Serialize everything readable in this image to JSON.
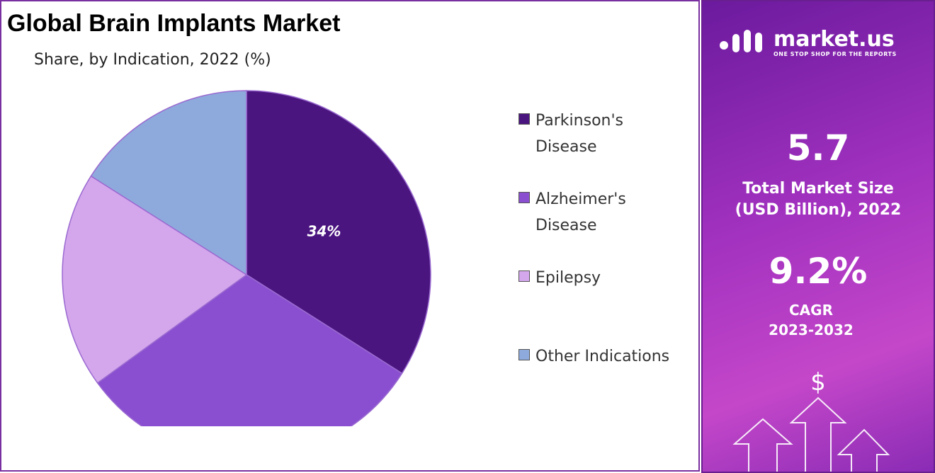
{
  "chart_data": {
    "type": "pie",
    "title": "Global Brain Implants Market",
    "subtitle": "Share, by Indication, 2022 (%)",
    "categories": [
      "Parkinson's Disease",
      "Alzheimer's Disease",
      "Epilepsy",
      "Other Indications"
    ],
    "values": [
      34,
      31,
      19,
      16
    ],
    "value_labels": [
      "34%",
      null,
      null,
      null
    ],
    "colors": [
      "#4b1580",
      "#8a4fd0",
      "#d4a6ec",
      "#8eaadc"
    ]
  },
  "panel": {
    "brand": "market.us",
    "tagline": "ONE STOP SHOP FOR THE REPORTS",
    "market_size": "5.7",
    "market_size_label": "Total Market Size",
    "market_size_unit": "(USD Billion), 2022",
    "cagr": "9.2%",
    "cagr_label": "CAGR",
    "cagr_period": "2023-2032",
    "currency": "$"
  }
}
